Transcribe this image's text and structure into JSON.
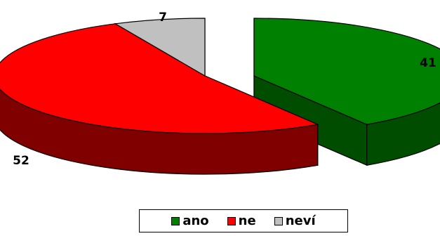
{
  "chart_data": {
    "type": "pie",
    "title": "",
    "categories": [
      "ano",
      "ne",
      "neví"
    ],
    "values": [
      41,
      52,
      7
    ],
    "colors": [
      "#008000",
      "#ff0000",
      "#c0c0c0"
    ],
    "side_colors": [
      "#004d00",
      "#800000",
      "#6e6e6e"
    ],
    "three_d": true,
    "exploded": true,
    "legend_position": "bottom",
    "data_labels": [
      "41",
      "52",
      "7"
    ]
  },
  "legend": {
    "items": [
      {
        "label": "ano",
        "color": "#008000"
      },
      {
        "label": "ne",
        "color": "#ff0000"
      },
      {
        "label": "neví",
        "color": "#c0c0c0"
      }
    ]
  }
}
